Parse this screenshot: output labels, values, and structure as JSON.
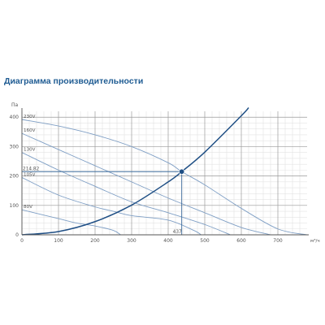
{
  "page": {
    "title": "Диаграмма производительности"
  },
  "colors": {
    "grid_minor": "#e3e3e3",
    "grid_major": "#9a9a9a",
    "fan_curve": "#7f9fc5",
    "system_curve": "#1f4f85",
    "operating_point": "#1f4f85",
    "guide_line": "#3d6c9c",
    "text": "#555555",
    "title": "#1f5c93"
  },
  "chart_data": {
    "type": "line",
    "title": "Диаграмма производительности",
    "xlabel": "м³/ч",
    "ylabel": "Па",
    "xlim": [
      0,
      780
    ],
    "ylim": [
      0,
      420
    ],
    "x_ticks": [
      0,
      100,
      200,
      300,
      400,
      500,
      600,
      700
    ],
    "y_ticks": [
      0,
      100,
      200,
      300,
      400
    ],
    "grid": true,
    "legend": "none",
    "series": [
      {
        "name": "230V",
        "x": [
          0,
          100,
          200,
          300,
          400,
          437,
          500,
          600,
          700,
          780
        ],
        "y": [
          392,
          370,
          340,
          300,
          245,
          214.82,
          170,
          90,
          20,
          0
        ]
      },
      {
        "name": "160V",
        "x": [
          0,
          100,
          200,
          300,
          400,
          500,
          600,
          680
        ],
        "y": [
          345,
          290,
          235,
          180,
          125,
          75,
          25,
          0
        ]
      },
      {
        "name": "130V",
        "x": [
          0,
          100,
          200,
          300,
          400,
          500,
          570
        ],
        "y": [
          280,
          220,
          165,
          112,
          75,
          35,
          0
        ]
      },
      {
        "name": "105V",
        "x": [
          0,
          100,
          200,
          250,
          300,
          400,
          470,
          490
        ],
        "y": [
          195,
          135,
          95,
          80,
          65,
          50,
          15,
          0
        ]
      },
      {
        "name": "80V",
        "x": [
          0,
          100,
          150,
          200,
          250,
          270
        ],
        "y": [
          85,
          55,
          40,
          30,
          15,
          0
        ]
      }
    ],
    "system_curve": {
      "x": [
        0,
        100,
        200,
        300,
        400,
        437,
        500,
        600,
        620
      ],
      "y": [
        0,
        11.2,
        44.9,
        101.1,
        179.9,
        214.82,
        281.1,
        404.8,
        432.3
      ]
    },
    "operating_point": {
      "x": 437,
      "y": 214.82,
      "x_label": "437",
      "y_label": "214.82"
    }
  }
}
